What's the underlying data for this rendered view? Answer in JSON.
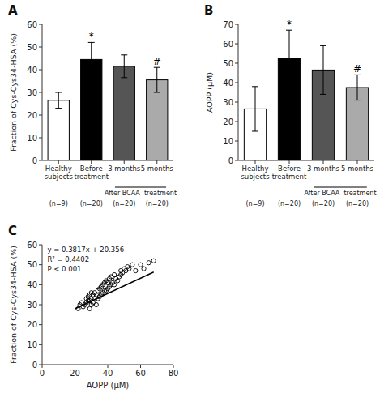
{
  "chart_data": [
    {
      "type": "bar",
      "title": "A",
      "categories": [
        "Healthy\nsubjects",
        "Before\ntreatment",
        "3 months",
        "5 months"
      ],
      "values": [
        26.5,
        44.5,
        41.5,
        35.5
      ],
      "errors": [
        3.5,
        7.5,
        5.0,
        5.5
      ],
      "colors": [
        "white",
        "black",
        "#555555",
        "#aaaaaa"
      ],
      "ylabel": "Fraction of Cys-Cys34-HSA (%)",
      "ylim": [
        0,
        60
      ],
      "yticks": [
        0,
        10,
        20,
        30,
        40,
        50,
        60
      ],
      "sig_labels": [
        null,
        "*",
        null,
        "#"
      ],
      "bracket_label": "After BCAA  treatment",
      "n_labels": [
        "(n=9)",
        "(n=20)",
        "(n=20)",
        "(n=20)"
      ],
      "grid": false
    },
    {
      "type": "bar",
      "title": "B",
      "categories": [
        "Healthy\nsubjects",
        "Before\ntreatment",
        "3 months",
        "5 months"
      ],
      "values": [
        26.5,
        52.5,
        46.5,
        37.5
      ],
      "errors": [
        11.5,
        14.5,
        12.5,
        6.5
      ],
      "colors": [
        "white",
        "black",
        "#555555",
        "#aaaaaa"
      ],
      "ylabel": "AOPP (μM)",
      "ylim": [
        0,
        70
      ],
      "yticks": [
        0,
        10,
        20,
        30,
        40,
        50,
        60,
        70
      ],
      "sig_labels": [
        null,
        "*",
        null,
        "#"
      ],
      "bracket_label": "After BCAA  treatment",
      "n_labels": [
        "(n=9)",
        "(n=20)",
        "(n=20)",
        "(n=20)"
      ],
      "grid": false
    },
    {
      "type": "scatter",
      "title": "C",
      "xlabel": "AOPP (μM)",
      "ylabel": "Fraction of Cys-Cys34-HSA (%)",
      "series": [
        {
          "type": "scatter",
          "marker": "circle",
          "color": "black",
          "x": [
            22,
            23,
            24,
            25,
            26,
            27,
            27,
            28,
            28,
            29,
            29,
            29,
            30,
            30,
            30,
            31,
            31,
            32,
            32,
            33,
            33,
            34,
            34,
            35,
            35,
            36,
            36,
            37,
            37,
            38,
            38,
            39,
            39,
            40,
            40,
            41,
            41,
            42,
            42,
            43,
            44,
            44,
            45,
            46,
            47,
            48,
            48,
            49,
            50,
            51,
            52,
            53,
            55,
            57,
            60,
            62,
            65,
            68
          ],
          "values": [
            28,
            30,
            31,
            29,
            30,
            31,
            33,
            32,
            34,
            28,
            32,
            35,
            30,
            33,
            36,
            31,
            35,
            33,
            36,
            30,
            35,
            33,
            37,
            34,
            38,
            35,
            39,
            36,
            40,
            37,
            41,
            37,
            42,
            38,
            41,
            39,
            43,
            40,
            44,
            41,
            40,
            45,
            43,
            42,
            44,
            45,
            47,
            46,
            48,
            47,
            49,
            48,
            50,
            47,
            50,
            48,
            51,
            52
          ]
        },
        {
          "type": "line",
          "line_style": "solid",
          "color": "black",
          "x": [
            20,
            68
          ],
          "values": [
            27.99,
            46.3116
          ]
        }
      ],
      "annotations": [
        "y = 0.3817x + 20.356",
        "R² = 0.4402",
        "P < 0.001"
      ],
      "xlim": [
        0,
        80
      ],
      "ylim": [
        0,
        60
      ],
      "xticks": [
        0,
        20,
        40,
        60,
        80
      ],
      "yticks": [
        0,
        10,
        20,
        30,
        40,
        50,
        60
      ],
      "grid": false
    }
  ]
}
